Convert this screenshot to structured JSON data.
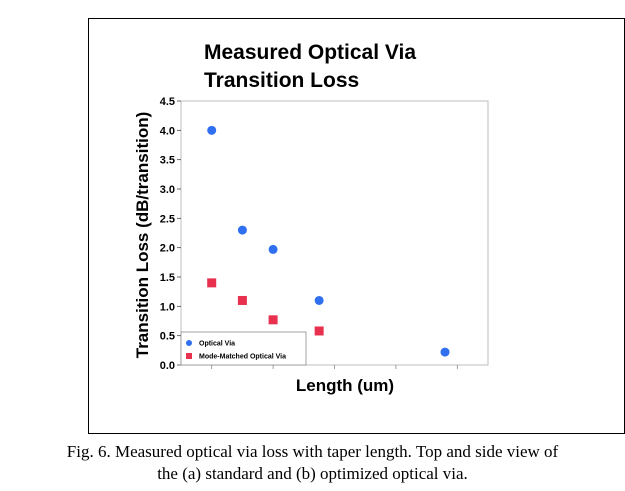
{
  "chart_data": {
    "type": "scatter",
    "title_lines": [
      "Measured Optical Via",
      "Transition Loss"
    ],
    "xlabel": "Length (um)",
    "ylabel": "Transition Loss (dB/transition)",
    "ylim": [
      0,
      4.5
    ],
    "yticks": [
      "0.0",
      "0.5",
      "1.0",
      "1.5",
      "2.0",
      "2.5",
      "3.0",
      "3.5",
      "4.0",
      "4.5"
    ],
    "xlim": [
      0,
      10
    ],
    "grid": false,
    "legend_position": "bottom-left",
    "series": [
      {
        "name": "Optical Via",
        "marker": "circle",
        "color": "#2f6ff0",
        "x": [
          1,
          2,
          3,
          4.5,
          8.6
        ],
        "y": [
          4.0,
          2.3,
          1.97,
          1.1,
          0.22
        ]
      },
      {
        "name": "Mode-Matched Optical Via",
        "marker": "square",
        "color": "#e8314f",
        "x": [
          1,
          2,
          3,
          4.5
        ],
        "y": [
          1.4,
          1.1,
          0.77,
          0.58
        ]
      }
    ]
  },
  "caption": {
    "line1": "Fig. 6. Measured optical via loss with taper length. Top and side view of",
    "line2": "the (a) standard and (b) optimized optical via."
  }
}
